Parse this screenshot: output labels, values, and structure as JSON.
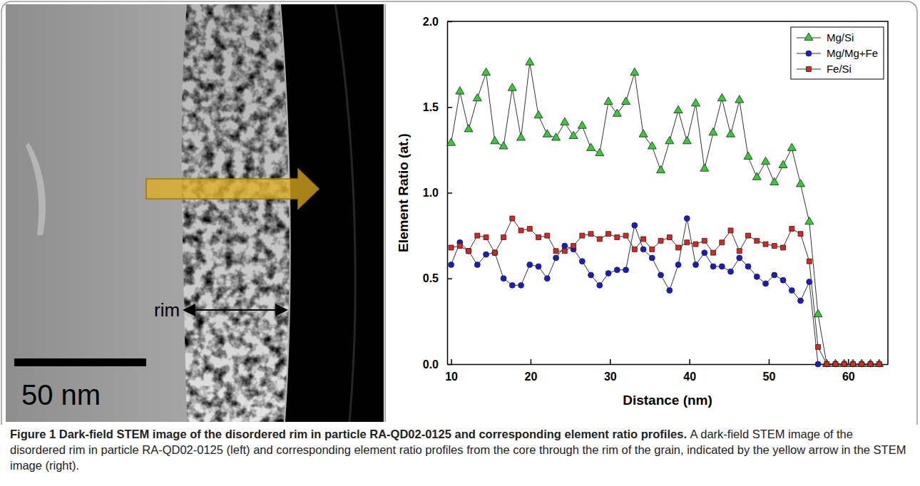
{
  "figure": {
    "image": {
      "label": "rim",
      "scale_bar": "50 nm"
    },
    "caption": {
      "title": "Figure 1 Dark-field STEM image of the disordered rim in particle RA-QD02-0125 and corresponding element ratio profiles.",
      "text": "A dark-field STEM image of the disordered rim in particle RA-QD02-0125 (left) and corresponding element ratio profiles from the core through the rim of the grain, indicated by the yellow arrow in the STEM image (right)."
    }
  },
  "chart_data": {
    "type": "line",
    "x_label": "Distance (nm)",
    "y_label": "Element Ratio (at.)",
    "x": [
      10.0,
      11.1,
      12.2,
      13.3,
      14.4,
      15.5,
      16.6,
      17.7,
      18.8,
      19.9,
      21.0,
      22.1,
      23.2,
      24.3,
      25.4,
      26.5,
      27.6,
      28.7,
      29.8,
      30.9,
      32.0,
      33.1,
      34.2,
      35.3,
      36.4,
      37.5,
      38.6,
      39.7,
      40.8,
      41.9,
      43.0,
      44.1,
      45.2,
      46.3,
      47.4,
      48.5,
      49.6,
      50.7,
      51.8,
      52.9,
      54.0,
      55.1,
      56.2,
      57.3,
      58.4,
      59.5,
      60.6,
      61.7,
      62.8,
      63.9
    ],
    "series": [
      {
        "name": "Mg/Si",
        "color": "#33cc33",
        "marker": "triangle",
        "line_style": "solid",
        "values": [
          1.29,
          1.59,
          1.37,
          1.55,
          1.7,
          1.3,
          1.27,
          1.61,
          1.32,
          1.76,
          1.45,
          1.34,
          1.32,
          1.41,
          1.33,
          1.39,
          1.26,
          1.23,
          1.53,
          1.46,
          1.53,
          1.7,
          1.34,
          1.27,
          1.13,
          1.3,
          1.48,
          1.3,
          1.52,
          1.14,
          1.35,
          1.55,
          1.34,
          1.54,
          1.21,
          1.09,
          1.18,
          1.06,
          1.16,
          1.26,
          1.05,
          0.83,
          0.29,
          0,
          0,
          0,
          0,
          0,
          0,
          0
        ]
      },
      {
        "name": "Mg/Mg+Fe",
        "color": "#1a1acc",
        "marker": "circle",
        "line_style": "solid",
        "values": [
          0.58,
          0.71,
          0.66,
          0.58,
          0.64,
          0.65,
          0.5,
          0.46,
          0.46,
          0.58,
          0.57,
          0.5,
          0.62,
          0.69,
          0.67,
          0.6,
          0.52,
          0.46,
          0.53,
          0.55,
          0.55,
          0.81,
          0.67,
          0.62,
          0.52,
          0.43,
          0.58,
          0.85,
          0.58,
          0.65,
          0.57,
          0.57,
          0.54,
          0.62,
          0.57,
          0.51,
          0.47,
          0.52,
          0.49,
          0.43,
          0.37,
          0.48,
          0,
          0,
          0,
          0,
          0,
          0,
          0,
          0
        ]
      },
      {
        "name": "Fe/Si",
        "color": "#e0231b",
        "marker": "square",
        "line_style": "solid",
        "values": [
          0.68,
          0.69,
          0.66,
          0.75,
          0.74,
          0.65,
          0.74,
          0.85,
          0.78,
          0.79,
          0.74,
          0.75,
          0.66,
          0.66,
          0.69,
          0.75,
          0.76,
          0.73,
          0.76,
          0.74,
          0.75,
          0.67,
          0.73,
          0.67,
          0.72,
          0.74,
          0.68,
          0.71,
          0.7,
          0.72,
          0.65,
          0.71,
          0.78,
          0.66,
          0.75,
          0.72,
          0.7,
          0.69,
          0.68,
          0.79,
          0.76,
          0.6,
          0.1,
          0,
          0,
          0,
          0,
          0,
          0,
          0
        ]
      }
    ],
    "xlim": [
      9.5,
      65
    ],
    "xticks": [
      10,
      20,
      30,
      40,
      50,
      60
    ],
    "ylim": [
      0,
      2
    ],
    "yticks": [
      {
        "value": 0,
        "label": "0.0"
      },
      {
        "value": 0.5,
        "label": "0.5"
      },
      {
        "value": 1,
        "label": "1.0"
      },
      {
        "value": 1.5,
        "label": "1.5"
      },
      {
        "value": 2,
        "label": "2.0"
      }
    ],
    "grid": false,
    "legend": "top-right"
  }
}
